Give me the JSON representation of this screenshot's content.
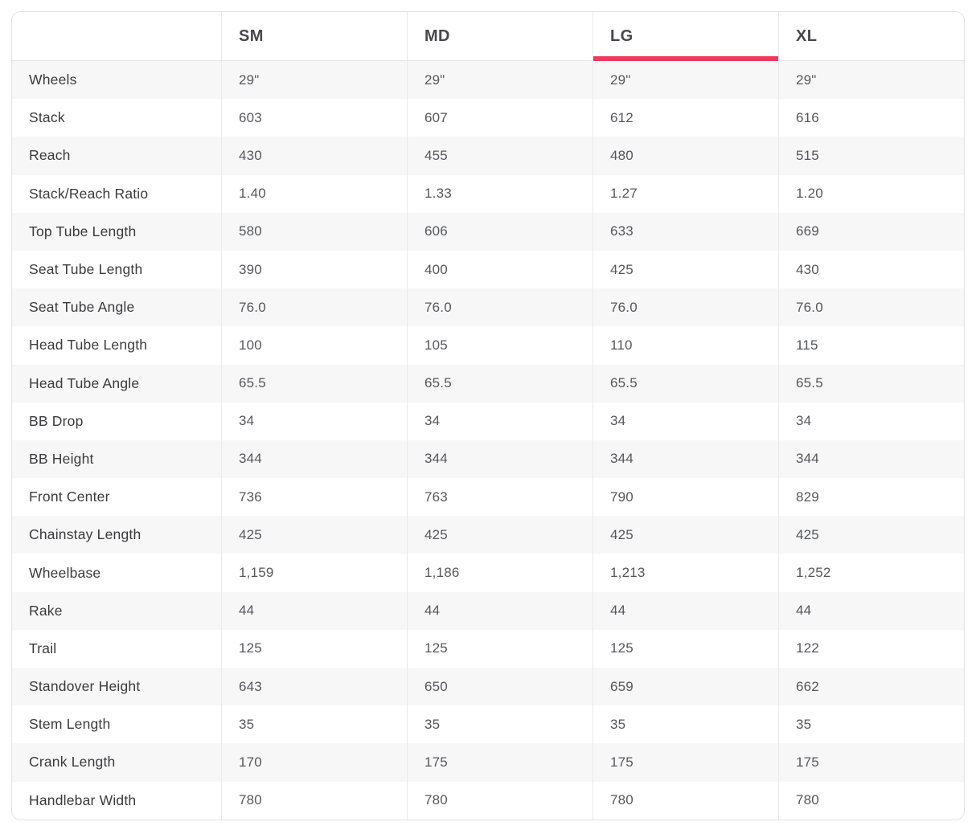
{
  "accent_color": "#ee3a5f",
  "table": {
    "title": "bike-geometry-size-chart",
    "columns": [
      "",
      "SM",
      "MD",
      "LG",
      "XL"
    ],
    "selected_column": "LG",
    "rows": [
      {
        "label": "Wheels",
        "values": [
          "29\"",
          "29\"",
          "29\"",
          "29\""
        ]
      },
      {
        "label": "Stack",
        "values": [
          "603",
          "607",
          "612",
          "616"
        ]
      },
      {
        "label": "Reach",
        "values": [
          "430",
          "455",
          "480",
          "515"
        ]
      },
      {
        "label": "Stack/Reach Ratio",
        "values": [
          "1.40",
          "1.33",
          "1.27",
          "1.20"
        ]
      },
      {
        "label": "Top Tube Length",
        "values": [
          "580",
          "606",
          "633",
          "669"
        ]
      },
      {
        "label": "Seat Tube Length",
        "values": [
          "390",
          "400",
          "425",
          "430"
        ]
      },
      {
        "label": "Seat Tube Angle",
        "values": [
          "76.0",
          "76.0",
          "76.0",
          "76.0"
        ]
      },
      {
        "label": "Head Tube Length",
        "values": [
          "100",
          "105",
          "110",
          "115"
        ]
      },
      {
        "label": "Head Tube Angle",
        "values": [
          "65.5",
          "65.5",
          "65.5",
          "65.5"
        ]
      },
      {
        "label": "BB Drop",
        "values": [
          "34",
          "34",
          "34",
          "34"
        ]
      },
      {
        "label": "BB Height",
        "values": [
          "344",
          "344",
          "344",
          "344"
        ]
      },
      {
        "label": "Front Center",
        "values": [
          "736",
          "763",
          "790",
          "829"
        ]
      },
      {
        "label": "Chainstay Length",
        "values": [
          "425",
          "425",
          "425",
          "425"
        ]
      },
      {
        "label": "Wheelbase",
        "values": [
          "1,159",
          "1,186",
          "1,213",
          "1,252"
        ]
      },
      {
        "label": "Rake",
        "values": [
          "44",
          "44",
          "44",
          "44"
        ]
      },
      {
        "label": "Trail",
        "values": [
          "125",
          "125",
          "125",
          "122"
        ]
      },
      {
        "label": "Standover Height",
        "values": [
          "643",
          "650",
          "659",
          "662"
        ]
      },
      {
        "label": "Stem Length",
        "values": [
          "35",
          "35",
          "35",
          "35"
        ]
      },
      {
        "label": "Crank Length",
        "values": [
          "170",
          "175",
          "175",
          "175"
        ]
      },
      {
        "label": "Handlebar Width",
        "values": [
          "780",
          "780",
          "780",
          "780"
        ]
      }
    ]
  }
}
